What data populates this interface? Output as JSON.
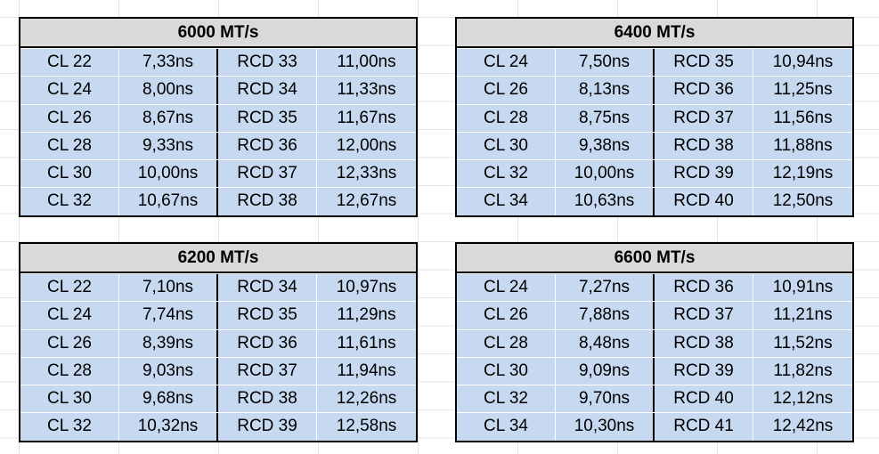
{
  "tables": [
    {
      "title": "6000 MT/s",
      "rows": [
        [
          "CL 22",
          "7,33ns",
          "RCD 33",
          "11,00ns"
        ],
        [
          "CL 24",
          "8,00ns",
          "RCD 34",
          "11,33ns"
        ],
        [
          "CL 26",
          "8,67ns",
          "RCD 35",
          "11,67ns"
        ],
        [
          "CL 28",
          "9,33ns",
          "RCD 36",
          "12,00ns"
        ],
        [
          "CL 30",
          "10,00ns",
          "RCD 37",
          "12,33ns"
        ],
        [
          "CL 32",
          "10,67ns",
          "RCD 38",
          "12,67ns"
        ]
      ]
    },
    {
      "title": "6400 MT/s",
      "rows": [
        [
          "CL 24",
          "7,50ns",
          "RCD 35",
          "10,94ns"
        ],
        [
          "CL 26",
          "8,13ns",
          "RCD 36",
          "11,25ns"
        ],
        [
          "CL 28",
          "8,75ns",
          "RCD 37",
          "11,56ns"
        ],
        [
          "CL 30",
          "9,38ns",
          "RCD 38",
          "11,88ns"
        ],
        [
          "CL 32",
          "10,00ns",
          "RCD 39",
          "12,19ns"
        ],
        [
          "CL 34",
          "10,63ns",
          "RCD 40",
          "12,50ns"
        ]
      ]
    },
    {
      "title": "6200 MT/s",
      "rows": [
        [
          "CL 22",
          "7,10ns",
          "RCD 34",
          "10,97ns"
        ],
        [
          "CL 24",
          "7,74ns",
          "RCD 35",
          "11,29ns"
        ],
        [
          "CL 26",
          "8,39ns",
          "RCD 36",
          "11,61ns"
        ],
        [
          "CL 28",
          "9,03ns",
          "RCD 37",
          "11,94ns"
        ],
        [
          "CL 30",
          "9,68ns",
          "RCD 38",
          "12,26ns"
        ],
        [
          "CL 32",
          "10,32ns",
          "RCD 39",
          "12,58ns"
        ]
      ]
    },
    {
      "title": "6600 MT/s",
      "rows": [
        [
          "CL 24",
          "7,27ns",
          "RCD 36",
          "10,91ns"
        ],
        [
          "CL 26",
          "7,88ns",
          "RCD 37",
          "11,21ns"
        ],
        [
          "CL 28",
          "8,48ns",
          "RCD 38",
          "11,52ns"
        ],
        [
          "CL 30",
          "9,09ns",
          "RCD 39",
          "11,82ns"
        ],
        [
          "CL 32",
          "9,70ns",
          "RCD 40",
          "12,12ns"
        ],
        [
          "CL 34",
          "10,30ns",
          "RCD 41",
          "12,42ns"
        ]
      ]
    }
  ]
}
